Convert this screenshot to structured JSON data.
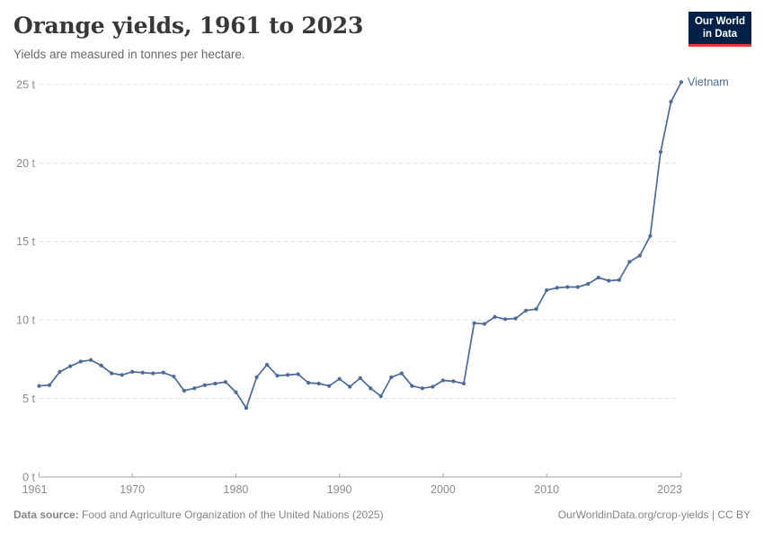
{
  "header": {
    "title": "Orange yields, 1961 to 2023",
    "subtitle": "Yields are measured in tonnes per hectare."
  },
  "logo": {
    "line1": "Our World",
    "line2": "in Data",
    "bg_color": "#002147",
    "accent_color": "#E23A2E"
  },
  "footer": {
    "source_label": "Data source:",
    "source_text": "Food and Agriculture Organization of the United Nations (2025)",
    "link_text": "OurWorldinData.org/crop-yields | CC BY"
  },
  "chart_data": {
    "type": "line",
    "title": "Orange yields, 1961 to 2023",
    "xlabel": "",
    "ylabel": "tonnes per hectare",
    "xlim": [
      1961,
      2023
    ],
    "ylim": [
      0,
      25
    ],
    "grid": "dashed-horizontal",
    "legend_position": "end-of-line-label",
    "x_ticks": [
      1961,
      1970,
      1980,
      1990,
      2000,
      2010,
      2023
    ],
    "x_tick_labels": [
      "1961",
      "1970",
      "1980",
      "1990",
      "2000",
      "2010",
      "2023"
    ],
    "y_ticks": [
      0,
      5,
      10,
      15,
      20,
      25
    ],
    "y_tick_labels": [
      "0 t",
      "5 t",
      "10 t",
      "15 t",
      "20 t",
      "25 t"
    ],
    "colors": {
      "series": "#4C6A9C",
      "grid": "#dcdcdc",
      "axis": "#a3a3a3",
      "tick_label": "#8c8c8c"
    },
    "x": [
      1961,
      1962,
      1963,
      1964,
      1965,
      1966,
      1967,
      1968,
      1969,
      1970,
      1971,
      1972,
      1973,
      1974,
      1975,
      1976,
      1977,
      1978,
      1979,
      1980,
      1981,
      1982,
      1983,
      1984,
      1985,
      1986,
      1987,
      1988,
      1989,
      1990,
      1991,
      1992,
      1993,
      1994,
      1995,
      1996,
      1997,
      1998,
      1999,
      2000,
      2001,
      2002,
      2003,
      2004,
      2005,
      2006,
      2007,
      2008,
      2009,
      2010,
      2011,
      2012,
      2013,
      2014,
      2015,
      2016,
      2017,
      2018,
      2019,
      2020,
      2021,
      2022,
      2023
    ],
    "series": [
      {
        "name": "Vietnam",
        "color": "#4C6A9C",
        "values": [
          5.8,
          5.85,
          6.7,
          7.05,
          7.35,
          7.45,
          7.1,
          6.6,
          6.5,
          6.7,
          6.65,
          6.6,
          6.65,
          6.4,
          5.5,
          5.65,
          5.85,
          5.95,
          6.05,
          5.4,
          4.4,
          6.35,
          7.15,
          6.45,
          6.5,
          6.55,
          6.0,
          5.95,
          5.8,
          6.25,
          5.75,
          6.3,
          5.65,
          5.15,
          6.35,
          6.6,
          5.8,
          5.65,
          5.75,
          6.15,
          6.1,
          5.95,
          9.8,
          9.75,
          10.2,
          10.05,
          10.1,
          10.6,
          10.7,
          11.9,
          12.05,
          12.1,
          12.1,
          12.3,
          12.7,
          12.5,
          12.55,
          13.7,
          14.1,
          15.35,
          20.7,
          23.9,
          25.15
        ]
      }
    ]
  }
}
